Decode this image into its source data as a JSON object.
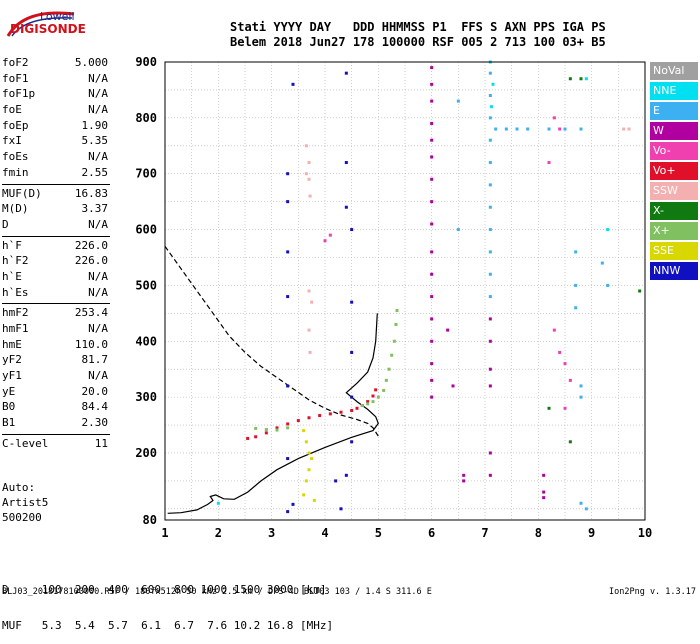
{
  "logo": {
    "line1": "Lowell",
    "line2": "DIGISONDE"
  },
  "header": {
    "line1": "Stati YYYY DAY   DDD HHMMSS P1  FFS S AXN PPS IGA PS",
    "line2": "Belem 2018 Jun27 178 100000 RSF 005 2 713 100 03+ B5"
  },
  "params": [
    {
      "k": "foF2",
      "v": "5.000"
    },
    {
      "k": "foF1",
      "v": "N/A"
    },
    {
      "k": "foF1p",
      "v": "N/A"
    },
    {
      "k": "foE",
      "v": "N/A"
    },
    {
      "k": "foEp",
      "v": "1.90"
    },
    {
      "k": "fxI",
      "v": "5.35"
    },
    {
      "k": "foEs",
      "v": "N/A"
    },
    {
      "k": "fmin",
      "v": "2.55"
    },
    {
      "k": "MUF(D)",
      "v": "16.83",
      "sep": true
    },
    {
      "k": "M(D)",
      "v": "3.37"
    },
    {
      "k": "D",
      "v": "N/A"
    },
    {
      "k": "h`F",
      "v": "226.0",
      "sep": true
    },
    {
      "k": "h`F2",
      "v": "226.0"
    },
    {
      "k": "h`E",
      "v": "N/A"
    },
    {
      "k": "h`Es",
      "v": "N/A"
    },
    {
      "k": "hmF2",
      "v": "253.4",
      "sep": true
    },
    {
      "k": "hmF1",
      "v": "N/A"
    },
    {
      "k": "hmE",
      "v": "110.0"
    },
    {
      "k": "yF2",
      "v": "81.7"
    },
    {
      "k": "yF1",
      "v": "N/A"
    },
    {
      "k": "yE",
      "v": "20.0"
    },
    {
      "k": "B0",
      "v": "84.4"
    },
    {
      "k": "B1",
      "v": "2.30"
    },
    {
      "k": "C-level",
      "v": "11",
      "sep": true
    }
  ],
  "auto": {
    "l1": "Auto:",
    "l2": "Artist5",
    "l3": "500200"
  },
  "dmuf": {
    "d": "D     100  200  400  600  800 1000 1500 3000 [km]",
    "muf": "MUF   5.3  5.4  5.7  6.1  6.7  7.6 10.2 16.8 [MHz]"
  },
  "footer": "BLJ03_2018178100000.RSF / 180fx512h 50 kHz 2.5 km / DPS-4D BLJ03 103 / 1.4 S 311.6 E",
  "version": "Ion2Png v. 1.3.17",
  "legend": [
    {
      "label": "NoVal",
      "color": "#a0a0a0"
    },
    {
      "label": "NNE",
      "color": "#00e0f0"
    },
    {
      "label": "E",
      "color": "#3cb0f0"
    },
    {
      "label": "W",
      "color": "#b000a0"
    },
    {
      "label": "Vo-",
      "color": "#f040b0"
    },
    {
      "label": "Vo+",
      "color": "#e0102a"
    },
    {
      "label": "SSW",
      "color": "#f4b0b0"
    },
    {
      "label": "X-",
      "color": "#107a10"
    },
    {
      "label": "X+",
      "color": "#80c060"
    },
    {
      "label": "SSE",
      "color": "#d8d800"
    },
    {
      "label": "NNW",
      "color": "#1010c0"
    }
  ],
  "chart_data": {
    "type": "scatter",
    "xlabel": "",
    "ylabel": "",
    "xlim": [
      1,
      10
    ],
    "ylim": [
      80,
      900
    ],
    "xticks": [
      1,
      2,
      3,
      4,
      5,
      6,
      7,
      8,
      9,
      10
    ],
    "yticks": [
      80,
      200,
      300,
      400,
      500,
      600,
      700,
      800,
      900
    ],
    "grid": true,
    "series": [
      {
        "name": "Vo+",
        "color": "#e0102a",
        "points": [
          [
            2.55,
            226
          ],
          [
            2.7,
            229
          ],
          [
            2.9,
            236
          ],
          [
            3.1,
            245
          ],
          [
            3.3,
            252
          ],
          [
            3.5,
            258
          ],
          [
            3.7,
            263
          ],
          [
            3.9,
            267
          ],
          [
            4.1,
            270
          ],
          [
            4.3,
            273
          ],
          [
            4.5,
            276
          ],
          [
            4.6,
            280
          ],
          [
            4.7,
            285
          ],
          [
            4.8,
            292
          ],
          [
            4.9,
            302
          ],
          [
            4.95,
            313
          ]
        ]
      },
      {
        "name": "X+",
        "color": "#80c060",
        "points": [
          [
            2.7,
            244
          ],
          [
            2.9,
            242
          ],
          [
            3.1,
            241
          ],
          [
            3.3,
            245
          ],
          [
            4.7,
            285
          ],
          [
            4.8,
            288
          ],
          [
            4.9,
            292
          ],
          [
            5.0,
            300
          ],
          [
            5.1,
            312
          ],
          [
            5.15,
            330
          ],
          [
            5.2,
            350
          ],
          [
            5.25,
            375
          ],
          [
            5.3,
            400
          ],
          [
            5.33,
            430
          ],
          [
            5.35,
            455
          ]
        ]
      },
      {
        "name": "SSW",
        "color": "#f4b0b0",
        "points": [
          [
            3.65,
            700
          ],
          [
            3.7,
            720
          ],
          [
            3.65,
            750
          ],
          [
            3.7,
            690
          ],
          [
            3.72,
            660
          ],
          [
            3.7,
            490
          ],
          [
            3.75,
            470
          ],
          [
            3.7,
            420
          ],
          [
            3.72,
            380
          ],
          [
            9.6,
            780
          ],
          [
            9.7,
            780
          ]
        ]
      },
      {
        "name": "SSE",
        "color": "#d8d800",
        "points": [
          [
            3.6,
            240
          ],
          [
            3.65,
            220
          ],
          [
            3.7,
            200
          ],
          [
            3.75,
            190
          ],
          [
            3.7,
            170
          ],
          [
            3.65,
            150
          ],
          [
            3.6,
            125
          ],
          [
            3.8,
            115
          ]
        ]
      },
      {
        "name": "NNW",
        "color": "#1010c0",
        "points": [
          [
            3.3,
            700
          ],
          [
            3.3,
            650
          ],
          [
            3.3,
            560
          ],
          [
            3.3,
            480
          ],
          [
            3.3,
            320
          ],
          [
            3.3,
            190
          ],
          [
            3.3,
            95
          ],
          [
            3.4,
            860
          ],
          [
            4.4,
            880
          ],
          [
            4.4,
            720
          ],
          [
            4.4,
            640
          ],
          [
            4.5,
            600
          ],
          [
            4.5,
            470
          ],
          [
            4.5,
            380
          ],
          [
            4.5,
            300
          ],
          [
            4.5,
            220
          ],
          [
            4.2,
            150
          ],
          [
            4.3,
            100
          ],
          [
            4.4,
            160
          ],
          [
            3.4,
            108
          ]
        ]
      },
      {
        "name": "W",
        "color": "#b000a0",
        "points": [
          [
            6.0,
            890
          ],
          [
            6.0,
            860
          ],
          [
            6.0,
            830
          ],
          [
            6.0,
            790
          ],
          [
            6.0,
            760
          ],
          [
            6.0,
            730
          ],
          [
            6.0,
            690
          ],
          [
            6.0,
            650
          ],
          [
            6.0,
            610
          ],
          [
            6.0,
            560
          ],
          [
            6.0,
            520
          ],
          [
            6.0,
            480
          ],
          [
            6.0,
            440
          ],
          [
            6.0,
            400
          ],
          [
            6.0,
            360
          ],
          [
            6.0,
            330
          ],
          [
            6.0,
            300
          ],
          [
            7.1,
            440
          ],
          [
            7.1,
            400
          ],
          [
            7.1,
            350
          ],
          [
            7.1,
            320
          ],
          [
            7.1,
            200
          ],
          [
            7.1,
            160
          ],
          [
            8.1,
            160
          ],
          [
            8.1,
            130
          ],
          [
            8.1,
            120
          ],
          [
            6.6,
            160
          ],
          [
            6.6,
            150
          ],
          [
            6.4,
            320
          ],
          [
            6.3,
            420
          ]
        ]
      },
      {
        "name": "E",
        "color": "#3cb0f0",
        "points": [
          [
            7.1,
            880
          ],
          [
            7.1,
            840
          ],
          [
            7.1,
            800
          ],
          [
            7.1,
            760
          ],
          [
            7.1,
            720
          ],
          [
            7.1,
            680
          ],
          [
            7.1,
            640
          ],
          [
            7.1,
            600
          ],
          [
            7.1,
            560
          ],
          [
            7.1,
            520
          ],
          [
            7.1,
            480
          ],
          [
            7.2,
            780
          ],
          [
            7.4,
            780
          ],
          [
            7.6,
            780
          ],
          [
            7.8,
            780
          ],
          [
            8.2,
            780
          ],
          [
            8.5,
            780
          ],
          [
            8.8,
            780
          ],
          [
            8.7,
            560
          ],
          [
            8.7,
            500
          ],
          [
            8.7,
            460
          ],
          [
            8.8,
            320
          ],
          [
            8.8,
            300
          ],
          [
            9.2,
            540
          ],
          [
            9.3,
            500
          ],
          [
            8.8,
            110
          ],
          [
            8.9,
            100
          ],
          [
            6.5,
            830
          ],
          [
            6.5,
            600
          ]
        ]
      },
      {
        "name": "Vo-",
        "color": "#f040b0",
        "points": [
          [
            8.3,
            800
          ],
          [
            8.4,
            780
          ],
          [
            8.2,
            720
          ],
          [
            8.3,
            420
          ],
          [
            8.4,
            380
          ],
          [
            8.5,
            360
          ],
          [
            8.6,
            330
          ],
          [
            8.5,
            280
          ],
          [
            4.0,
            580
          ],
          [
            4.1,
            590
          ]
        ]
      },
      {
        "name": "X-",
        "color": "#107a10",
        "points": [
          [
            8.6,
            870
          ],
          [
            8.8,
            870
          ],
          [
            9.9,
            490
          ],
          [
            8.2,
            280
          ],
          [
            8.6,
            220
          ]
        ]
      },
      {
        "name": "NNE",
        "color": "#00e0f0",
        "points": [
          [
            7.1,
            900
          ],
          [
            7.15,
            860
          ],
          [
            7.12,
            820
          ],
          [
            8.9,
            870
          ],
          [
            9.3,
            600
          ],
          [
            2.0,
            110
          ]
        ]
      }
    ],
    "profiles": [
      {
        "name": "profile-solid",
        "points": [
          [
            1.05,
            92
          ],
          [
            1.3,
            93
          ],
          [
            1.6,
            98
          ],
          [
            1.8,
            108
          ],
          [
            1.9,
            115
          ],
          [
            1.85,
            122
          ],
          [
            1.95,
            125
          ],
          [
            2.1,
            118
          ],
          [
            2.3,
            117
          ],
          [
            2.55,
            130
          ],
          [
            2.8,
            150
          ],
          [
            3.1,
            170
          ],
          [
            3.5,
            190
          ],
          [
            4.0,
            210
          ],
          [
            4.5,
            228
          ],
          [
            4.9,
            240
          ],
          [
            5.0,
            253
          ],
          [
            4.95,
            265
          ],
          [
            4.8,
            278
          ],
          [
            4.6,
            292
          ],
          [
            4.4,
            308
          ],
          [
            4.6,
            325
          ],
          [
            4.8,
            345
          ],
          [
            4.9,
            370
          ],
          [
            4.95,
            400
          ],
          [
            4.98,
            450
          ]
        ]
      },
      {
        "name": "profile-dashed",
        "points": [
          [
            1.0,
            570
          ],
          [
            1.3,
            530
          ],
          [
            1.6,
            490
          ],
          [
            1.9,
            450
          ],
          [
            2.2,
            410
          ],
          [
            2.5,
            380
          ],
          [
            2.8,
            355
          ],
          [
            3.1,
            335
          ],
          [
            3.4,
            315
          ],
          [
            3.7,
            295
          ],
          [
            4.0,
            280
          ],
          [
            4.3,
            268
          ],
          [
            4.6,
            260
          ],
          [
            4.8,
            253
          ],
          [
            4.9,
            245
          ],
          [
            5.0,
            230
          ]
        ]
      }
    ]
  }
}
